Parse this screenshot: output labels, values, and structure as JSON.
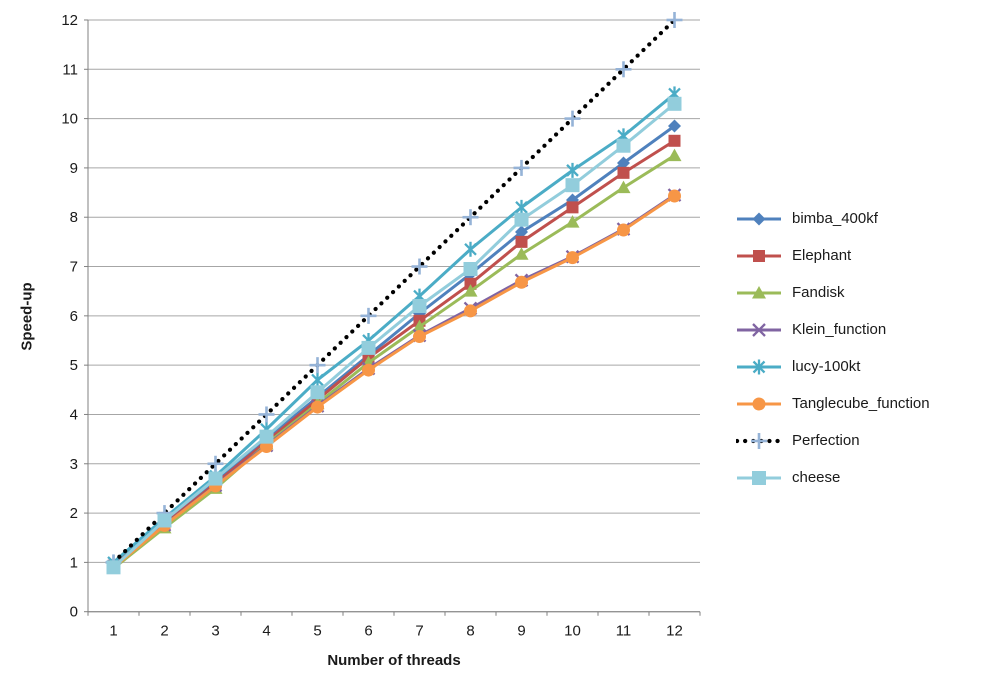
{
  "chart_data": {
    "type": "line",
    "title": "",
    "xlabel": "Number of threads",
    "ylabel": "Speed-up",
    "x": [
      1,
      2,
      3,
      4,
      5,
      6,
      7,
      8,
      9,
      10,
      11,
      12
    ],
    "xtick_labels": [
      "1",
      "2",
      "3",
      "4",
      "5",
      "6",
      "7",
      "8",
      "9",
      "10",
      "11",
      "12"
    ],
    "ylim": [
      0,
      12
    ],
    "ytick_step": 1,
    "ytick_labels": [
      "0",
      "1",
      "2",
      "3",
      "4",
      "5",
      "6",
      "7",
      "8",
      "9",
      "10",
      "11",
      "12"
    ],
    "grid": "horizontal",
    "legend_position": "right",
    "series": [
      {
        "name": "bimba_400kf",
        "color": "#4F81BD",
        "marker": "diamond",
        "line": "solid",
        "values": [
          0.95,
          1.8,
          2.65,
          3.5,
          4.35,
          5.2,
          6.05,
          6.85,
          7.7,
          8.35,
          9.1,
          9.85
        ]
      },
      {
        "name": "Elephant",
        "color": "#C0504D",
        "marker": "square",
        "line": "solid",
        "values": [
          0.93,
          1.78,
          2.6,
          3.45,
          4.3,
          5.15,
          5.9,
          6.65,
          7.5,
          8.2,
          8.9,
          9.55
        ]
      },
      {
        "name": "Fandisk",
        "color": "#9BBB59",
        "marker": "triangle",
        "line": "solid",
        "values": [
          0.88,
          1.7,
          2.5,
          3.4,
          4.22,
          5.05,
          5.78,
          6.5,
          7.25,
          7.9,
          8.6,
          9.25
        ]
      },
      {
        "name": "Klein_function",
        "color": "#8064A2",
        "marker": "x",
        "line": "solid",
        "values": [
          0.92,
          1.76,
          2.56,
          3.37,
          4.17,
          4.93,
          5.6,
          6.15,
          6.72,
          7.2,
          7.76,
          8.45
        ]
      },
      {
        "name": "lucy-100kt",
        "color": "#4BACC6",
        "marker": "asterisk",
        "line": "solid",
        "values": [
          1.0,
          1.9,
          2.75,
          3.7,
          4.7,
          5.5,
          6.4,
          7.35,
          8.2,
          8.95,
          9.65,
          10.5
        ]
      },
      {
        "name": "Tanglecube_function",
        "color": "#F79646",
        "marker": "circle",
        "line": "solid",
        "values": [
          0.9,
          1.75,
          2.55,
          3.35,
          4.15,
          4.9,
          5.58,
          6.1,
          6.68,
          7.18,
          7.74,
          8.43
        ]
      },
      {
        "name": "Perfection",
        "color": "#000000",
        "marker": "plus",
        "marker_color": "#95B3D7",
        "line": "dotted",
        "values": [
          1,
          2,
          3,
          4,
          5,
          6,
          7,
          8,
          9,
          10,
          11,
          12
        ]
      },
      {
        "name": "cheese",
        "color": "#92CDDC",
        "marker": "square_big",
        "line": "solid",
        "values": [
          0.9,
          1.85,
          2.7,
          3.55,
          4.45,
          5.35,
          6.2,
          6.95,
          7.95,
          8.65,
          9.45,
          10.3
        ]
      }
    ]
  },
  "colors": {
    "gridline": "#A6A6A6",
    "axis": "#808080",
    "text": "#1A1A1A",
    "background": "#FFFFFF"
  }
}
